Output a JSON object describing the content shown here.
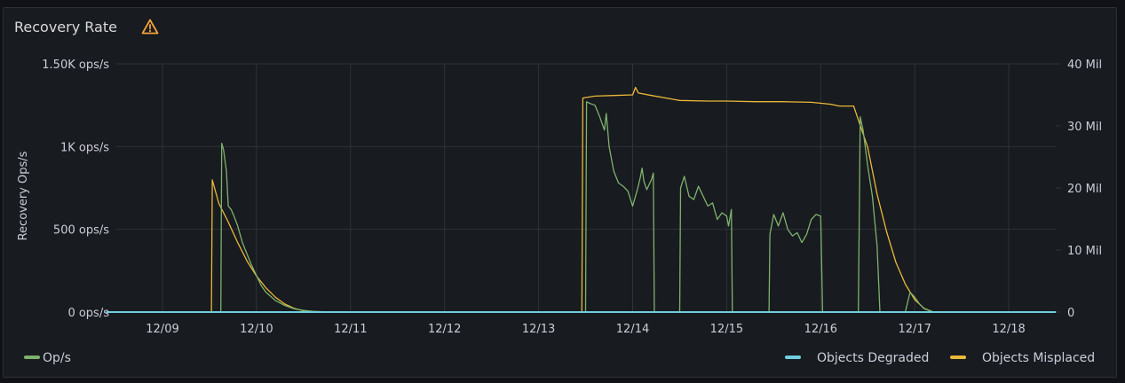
{
  "panel": {
    "title": "Recovery Rate",
    "warning_icon": "warning-triangle-icon"
  },
  "colors": {
    "background": "#181b1f",
    "grid": "#2f3237",
    "ops": "#7eb26d",
    "degraded": "#6ed0e0",
    "misplaced": "#eab839",
    "warning": "#f2a33a"
  },
  "chart_data": {
    "type": "line",
    "x_axis": {
      "type": "time",
      "tick_labels": [
        "12/09",
        "12/10",
        "12/11",
        "12/12",
        "12/13",
        "12/14",
        "12/15",
        "12/16",
        "12/17",
        "12/18"
      ],
      "range_days": [
        8.4,
        18.5
      ]
    },
    "y_left": {
      "label": "Recovery Ops/s",
      "ticks": [
        {
          "value": 0,
          "label": "0 ops/s"
        },
        {
          "value": 500,
          "label": "500 ops/s"
        },
        {
          "value": 1000,
          "label": "1K ops/s"
        },
        {
          "value": 1500,
          "label": "1.50K ops/s"
        }
      ],
      "range": [
        0,
        1500
      ]
    },
    "y_right": {
      "ticks": [
        {
          "value": 0,
          "label": "0"
        },
        {
          "value": 10000000,
          "label": "10 Mil"
        },
        {
          "value": 20000000,
          "label": "20 Mil"
        },
        {
          "value": 30000000,
          "label": "30 Mil"
        },
        {
          "value": 40000000,
          "label": "40 Mil"
        }
      ],
      "range": [
        0,
        40000000
      ]
    },
    "series": [
      {
        "name": "Op/s",
        "axis": "left",
        "color": "#7eb26d",
        "points": [
          [
            8.4,
            0
          ],
          [
            9.62,
            0
          ],
          [
            9.63,
            1020
          ],
          [
            9.65,
            980
          ],
          [
            9.68,
            850
          ],
          [
            9.7,
            640
          ],
          [
            9.73,
            620
          ],
          [
            9.76,
            580
          ],
          [
            9.8,
            520
          ],
          [
            9.85,
            420
          ],
          [
            9.9,
            350
          ],
          [
            9.95,
            280
          ],
          [
            10.0,
            220
          ],
          [
            10.05,
            160
          ],
          [
            10.1,
            120
          ],
          [
            10.2,
            70
          ],
          [
            10.3,
            40
          ],
          [
            10.4,
            20
          ],
          [
            10.5,
            10
          ],
          [
            10.6,
            5
          ],
          [
            10.8,
            0
          ],
          [
            13.5,
            0
          ],
          [
            13.51,
            1270
          ],
          [
            13.55,
            1260
          ],
          [
            13.6,
            1250
          ],
          [
            13.65,
            1180
          ],
          [
            13.7,
            1100
          ],
          [
            13.72,
            1200
          ],
          [
            13.75,
            1000
          ],
          [
            13.8,
            850
          ],
          [
            13.85,
            780
          ],
          [
            13.9,
            760
          ],
          [
            13.95,
            730
          ],
          [
            14.0,
            640
          ],
          [
            14.05,
            740
          ],
          [
            14.08,
            810
          ],
          [
            14.1,
            870
          ],
          [
            14.12,
            790
          ],
          [
            14.15,
            740
          ],
          [
            14.2,
            800
          ],
          [
            14.22,
            840
          ],
          [
            14.23,
            0
          ],
          [
            14.5,
            0
          ],
          [
            14.51,
            750
          ],
          [
            14.55,
            820
          ],
          [
            14.6,
            700
          ],
          [
            14.65,
            680
          ],
          [
            14.7,
            760
          ],
          [
            14.75,
            700
          ],
          [
            14.8,
            640
          ],
          [
            14.85,
            660
          ],
          [
            14.9,
            560
          ],
          [
            14.95,
            600
          ],
          [
            15.0,
            580
          ],
          [
            15.02,
            520
          ],
          [
            15.05,
            620
          ],
          [
            15.06,
            0
          ],
          [
            15.45,
            0
          ],
          [
            15.46,
            470
          ],
          [
            15.5,
            590
          ],
          [
            15.55,
            520
          ],
          [
            15.6,
            600
          ],
          [
            15.65,
            500
          ],
          [
            15.7,
            460
          ],
          [
            15.75,
            480
          ],
          [
            15.8,
            420
          ],
          [
            15.85,
            470
          ],
          [
            15.9,
            560
          ],
          [
            15.95,
            590
          ],
          [
            16.0,
            580
          ],
          [
            16.02,
            0
          ],
          [
            16.4,
            0
          ],
          [
            16.42,
            1180
          ],
          [
            16.45,
            1100
          ],
          [
            16.5,
            880
          ],
          [
            16.55,
            700
          ],
          [
            16.6,
            400
          ],
          [
            16.63,
            0
          ],
          [
            16.9,
            0
          ],
          [
            16.95,
            120
          ],
          [
            17.0,
            90
          ],
          [
            17.05,
            50
          ],
          [
            17.1,
            20
          ],
          [
            17.2,
            0
          ],
          [
            18.5,
            0
          ]
        ]
      },
      {
        "name": "Objects Degraded",
        "axis": "right",
        "color": "#6ed0e0",
        "points": [
          [
            8.4,
            0
          ],
          [
            18.5,
            0
          ]
        ]
      },
      {
        "name": "Objects Misplaced",
        "axis": "right",
        "color": "#eab839",
        "points": [
          [
            8.4,
            0
          ],
          [
            9.52,
            0
          ],
          [
            9.53,
            21300000
          ],
          [
            9.6,
            17500000
          ],
          [
            9.7,
            14500000
          ],
          [
            9.8,
            11200000
          ],
          [
            9.9,
            8200000
          ],
          [
            10.0,
            5800000
          ],
          [
            10.1,
            3900000
          ],
          [
            10.2,
            2400000
          ],
          [
            10.3,
            1300000
          ],
          [
            10.4,
            600000
          ],
          [
            10.5,
            200000
          ],
          [
            10.6,
            0
          ],
          [
            13.46,
            0
          ],
          [
            13.47,
            34500000
          ],
          [
            13.6,
            34800000
          ],
          [
            13.8,
            34900000
          ],
          [
            14.0,
            35000000
          ],
          [
            14.03,
            36200000
          ],
          [
            14.06,
            35300000
          ],
          [
            14.2,
            34900000
          ],
          [
            14.5,
            34100000
          ],
          [
            14.8,
            34000000
          ],
          [
            15.0,
            34000000
          ],
          [
            15.3,
            33900000
          ],
          [
            15.6,
            33900000
          ],
          [
            15.9,
            33800000
          ],
          [
            16.1,
            33500000
          ],
          [
            16.2,
            33200000
          ],
          [
            16.35,
            33200000
          ],
          [
            16.5,
            26500000
          ],
          [
            16.6,
            19000000
          ],
          [
            16.7,
            13000000
          ],
          [
            16.8,
            8000000
          ],
          [
            16.9,
            4500000
          ],
          [
            17.0,
            2000000
          ],
          [
            17.1,
            600000
          ],
          [
            17.2,
            0
          ],
          [
            18.5,
            0
          ]
        ]
      }
    ],
    "legend": {
      "placement": "bottom",
      "items": [
        {
          "name": "Op/s",
          "color": "#7eb26d"
        },
        {
          "name": "Objects Degraded",
          "color": "#6ed0e0"
        },
        {
          "name": "Objects Misplaced",
          "color": "#eab839"
        }
      ]
    },
    "grid": true
  }
}
